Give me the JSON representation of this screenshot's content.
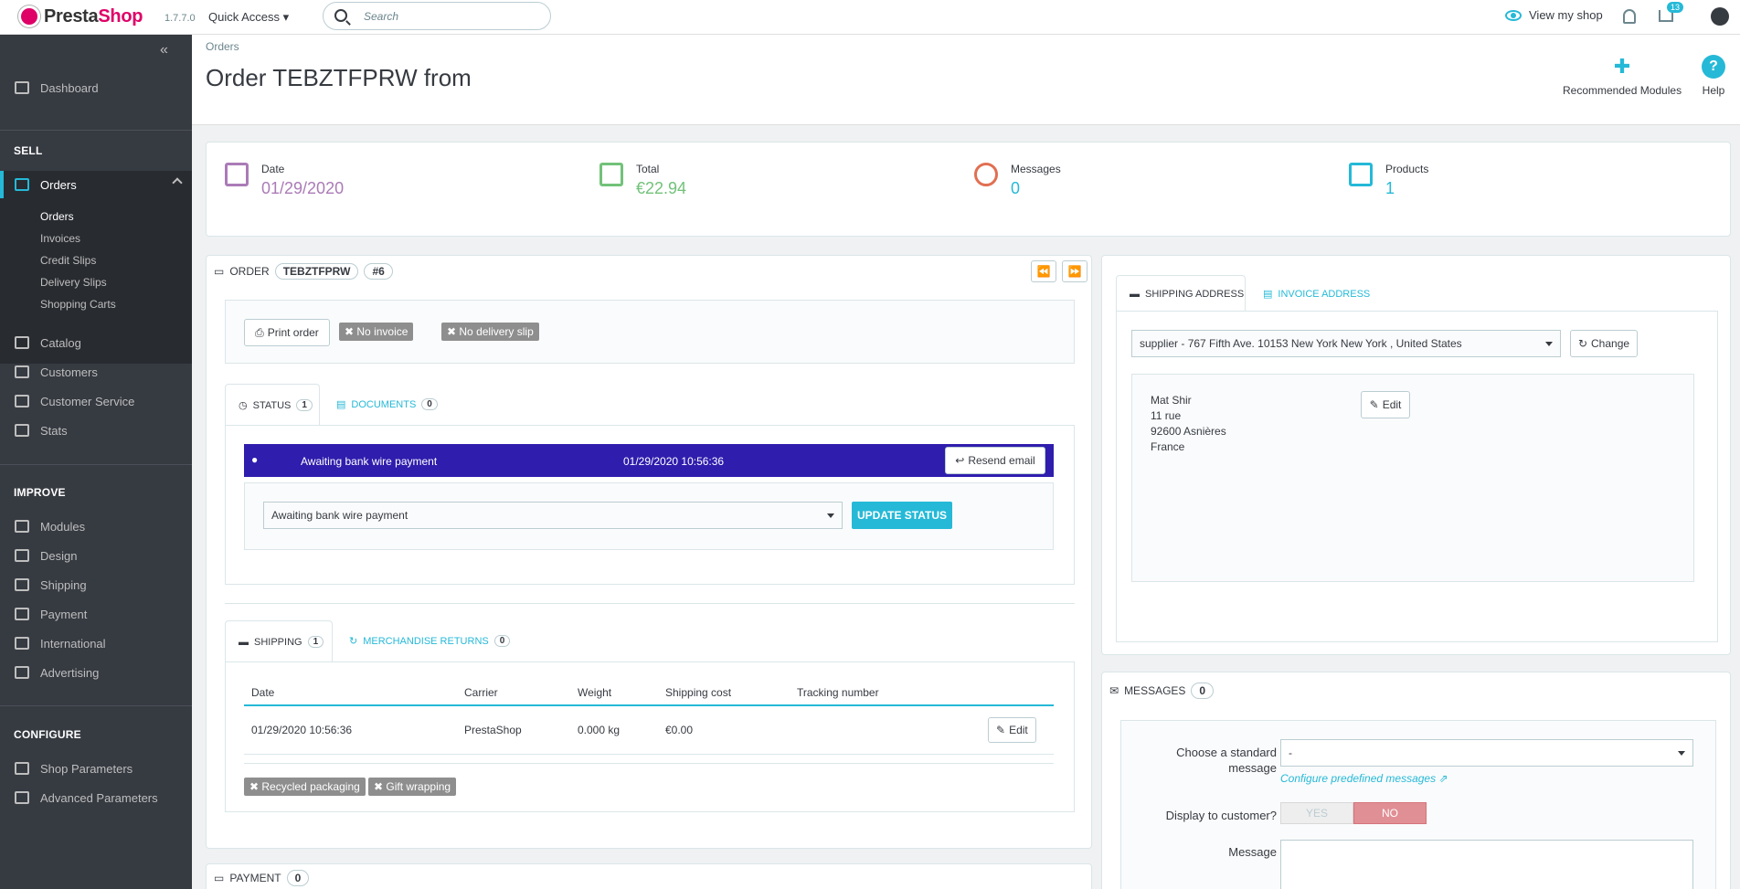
{
  "topbar": {
    "logo_a": "Presta",
    "logo_b": "Shop",
    "version": "1.7.7.0",
    "quick_access": "Quick Access ▾",
    "search_placeholder": "Search",
    "view_shop": "View my shop",
    "cart_count": "13"
  },
  "sidebar": {
    "dashboard": "Dashboard",
    "sell": "SELL",
    "orders": "Orders",
    "orders_sub": [
      "Orders",
      "Invoices",
      "Credit Slips",
      "Delivery Slips",
      "Shopping Carts"
    ],
    "catalog": "Catalog",
    "customers": "Customers",
    "customer_service": "Customer Service",
    "stats": "Stats",
    "improve": "IMPROVE",
    "modules": "Modules",
    "design": "Design",
    "shipping": "Shipping",
    "payment": "Payment",
    "international": "International",
    "advertising": "Advertising",
    "configure": "CONFIGURE",
    "shop_parameters": "Shop Parameters",
    "advanced_parameters": "Advanced Parameters"
  },
  "header": {
    "breadcrumb": "Orders",
    "title": "Order TEBZTFPRW from",
    "recommended": "Recommended Modules",
    "help": "Help"
  },
  "kpis": {
    "date_label": "Date",
    "date_value": "01/29/2020",
    "total_label": "Total",
    "total_value": "€22.94",
    "messages_label": "Messages",
    "messages_value": "0",
    "products_label": "Products",
    "products_value": "1"
  },
  "order": {
    "label": "ORDER",
    "reference": "TEBZTFPRW",
    "id": "#6",
    "print": "Print order",
    "no_invoice": "✖ No invoice",
    "no_delivery": "✖ No delivery slip",
    "tab_status": "STATUS",
    "tab_status_count": "1",
    "tab_documents": "DOCUMENTS",
    "tab_documents_count": "0",
    "status_name": "Awaiting bank wire payment",
    "status_date": "01/29/2020 10:56:36",
    "resend": "Resend email",
    "status_select": "Awaiting bank wire payment",
    "update_status": "UPDATE STATUS",
    "tab_shipping": "SHIPPING",
    "tab_shipping_count": "1",
    "tab_returns": "MERCHANDISE RETURNS",
    "tab_returns_count": "0",
    "ship_headers": [
      "Date",
      "Carrier",
      "Weight",
      "Shipping cost",
      "Tracking number"
    ],
    "ship_row": [
      "01/29/2020 10:56:36",
      "PrestaShop",
      "0.000 kg",
      "€0.00",
      ""
    ],
    "edit": "Edit",
    "recycled": "✖ Recycled packaging",
    "gift": "✖ Gift wrapping",
    "payment_label": "PAYMENT",
    "payment_count": "0"
  },
  "address": {
    "tab_shipping": "SHIPPING ADDRESS",
    "tab_invoice": "INVOICE ADDRESS",
    "select": "supplier - 767 Fifth Ave. 10153 New York New York , United States",
    "change": "Change",
    "lines": [
      "Mat Shir",
      "11 rue",
      "92600 Asnières",
      "France"
    ],
    "edit": "Edit"
  },
  "messages": {
    "label": "MESSAGES",
    "count": "0",
    "choose_a": "Choose a standard",
    "choose_b": "message",
    "select": "-",
    "configure": "Configure predefined messages",
    "display": "Display to customer?",
    "yes": "YES",
    "no": "NO",
    "message": "Message"
  },
  "colors": {
    "accent": "#25b9d7",
    "sidebar": "#363a41",
    "status_bar": "#2f1dad",
    "date": "#ab7bb7",
    "total": "#72c279",
    "messages": "#e16f52"
  }
}
